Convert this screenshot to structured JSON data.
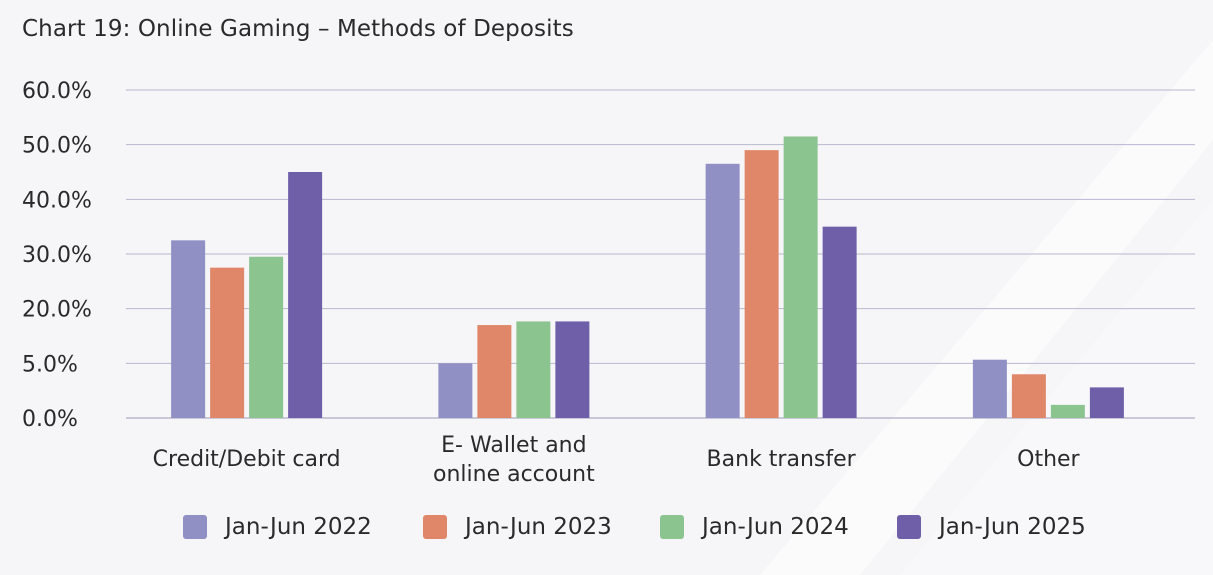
{
  "chart_data": {
    "type": "bar",
    "title": "Chart 19: Online Gaming – Methods of Deposits",
    "categories": [
      [
        "Credit/Debit card"
      ],
      [
        "E- Wallet and",
        "online account"
      ],
      [
        "Bank transfer"
      ],
      [
        "Other"
      ]
    ],
    "yticks": [
      "0.0%",
      "5.0%",
      "20.0%",
      "30.0%",
      "40.0%",
      "50.0%",
      "60.0%"
    ],
    "ylim_levels": [
      0,
      6
    ],
    "series": [
      {
        "name": "Jan-Jun 2022",
        "color": "#9090c4",
        "values": [
          32.5,
          5.0,
          46.5,
          6.0
        ]
      },
      {
        "name": "Jan-Jun 2023",
        "color": "#e0876a",
        "values": [
          27.5,
          15.5,
          49.0,
          4.0
        ]
      },
      {
        "name": "Jan-Jun 2024",
        "color": "#8cc490",
        "values": [
          29.5,
          16.5,
          51.5,
          1.2
        ]
      },
      {
        "name": "Jan-Jun 2025",
        "color": "#6e5fa8",
        "values": [
          45.0,
          16.5,
          35.0,
          2.8
        ]
      }
    ],
    "grid": true,
    "legend_position": "bottom"
  }
}
